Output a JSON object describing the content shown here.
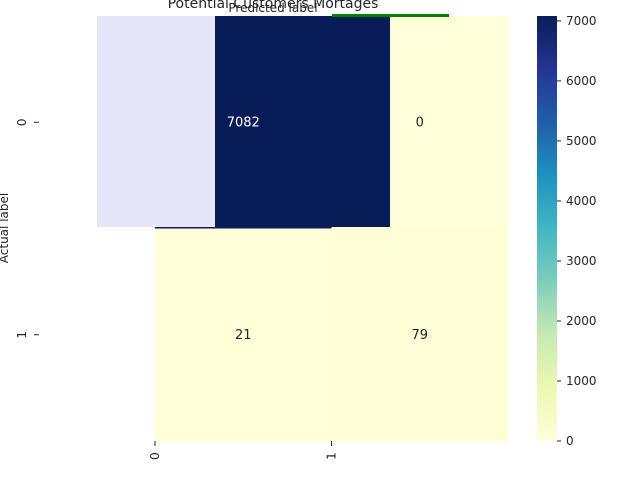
{
  "chart_data": {
    "type": "heatmap",
    "title": "Potential Customers Mortages",
    "xlabel": "Predicted label",
    "ylabel": "Actual label",
    "x_tick_labels": [
      "0",
      "1"
    ],
    "y_tick_labels": [
      "0",
      "1"
    ],
    "values": [
      [
        7082,
        0
      ],
      [
        21,
        79
      ]
    ],
    "colorbar": {
      "min": 0,
      "max": 7082,
      "ticks": [
        0,
        1000,
        2000,
        3000,
        4000,
        5000,
        6000,
        7000
      ],
      "colormap": "YlGnBu"
    },
    "overlay_colors": {
      "lavender_block": "#e6e6fa",
      "green_line": "#008000"
    }
  }
}
